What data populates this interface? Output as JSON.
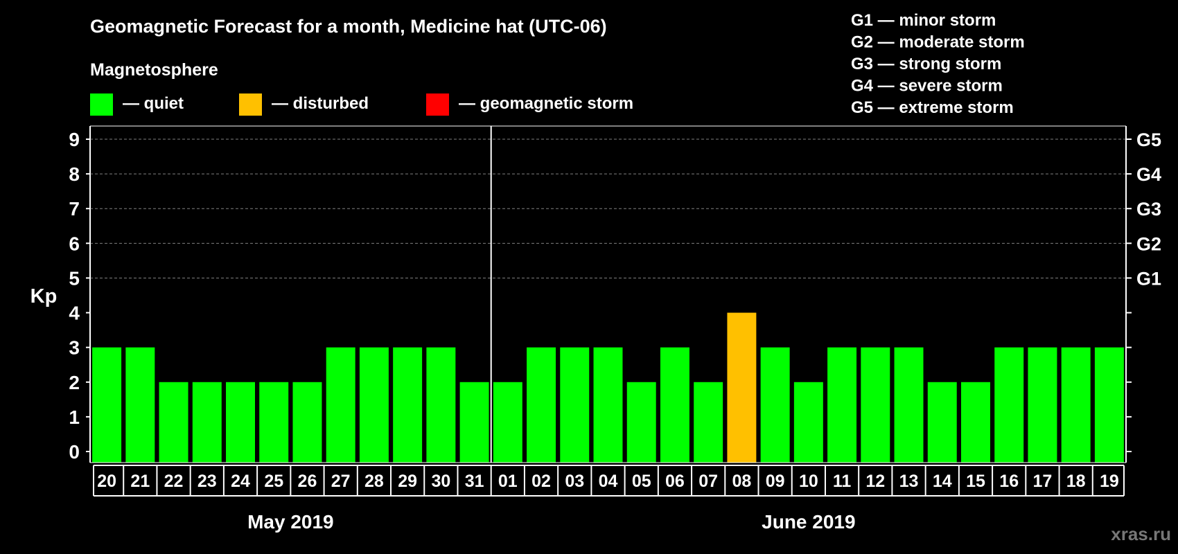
{
  "chart_data": {
    "type": "bar",
    "title": "Geomagnetic Forecast for a month, Medicine hat (UTC-06)",
    "subtitle": "Magnetosphere",
    "ylabel": "Kp",
    "ylim": [
      0,
      9
    ],
    "yticks": [
      "0",
      "1",
      "2",
      "3",
      "4",
      "5",
      "6",
      "7",
      "8",
      "9"
    ],
    "right_ticks": [
      {
        "kp": 5,
        "label": "G1"
      },
      {
        "kp": 6,
        "label": "G2"
      },
      {
        "kp": 7,
        "label": "G3"
      },
      {
        "kp": 8,
        "label": "G4"
      },
      {
        "kp": 9,
        "label": "G5"
      }
    ],
    "legend": [
      {
        "label": "— quiet",
        "color": "#00ff00"
      },
      {
        "label": "— disturbed",
        "color": "#ffc000"
      },
      {
        "label": "— geomagnetic storm",
        "color": "#ff0000"
      }
    ],
    "storm_legend": [
      "G1 — minor storm",
      "G2 — moderate storm",
      "G3 — strong storm",
      "G4 — severe storm",
      "G5 — extreme storm"
    ],
    "months": [
      {
        "label": "May 2019",
        "days": 12
      },
      {
        "label": "June 2019",
        "days": 19
      }
    ],
    "categories": [
      "20",
      "21",
      "22",
      "23",
      "24",
      "25",
      "26",
      "27",
      "28",
      "29",
      "30",
      "31",
      "01",
      "02",
      "03",
      "04",
      "05",
      "06",
      "07",
      "08",
      "09",
      "10",
      "11",
      "12",
      "13",
      "14",
      "15",
      "16",
      "17",
      "18",
      "19"
    ],
    "values": [
      3,
      3,
      2,
      2,
      2,
      2,
      2,
      3,
      3,
      3,
      3,
      2,
      2,
      3,
      3,
      3,
      2,
      3,
      2,
      4,
      3,
      2,
      3,
      3,
      3,
      2,
      2,
      3,
      3,
      3,
      3
    ],
    "colors": {
      "quiet": "#00ff00",
      "disturbed": "#ffc000",
      "storm": "#ff0000",
      "grid": "#808080",
      "axis": "#ffffff",
      "watermark": "#777777"
    },
    "watermark": "xras.ru"
  }
}
